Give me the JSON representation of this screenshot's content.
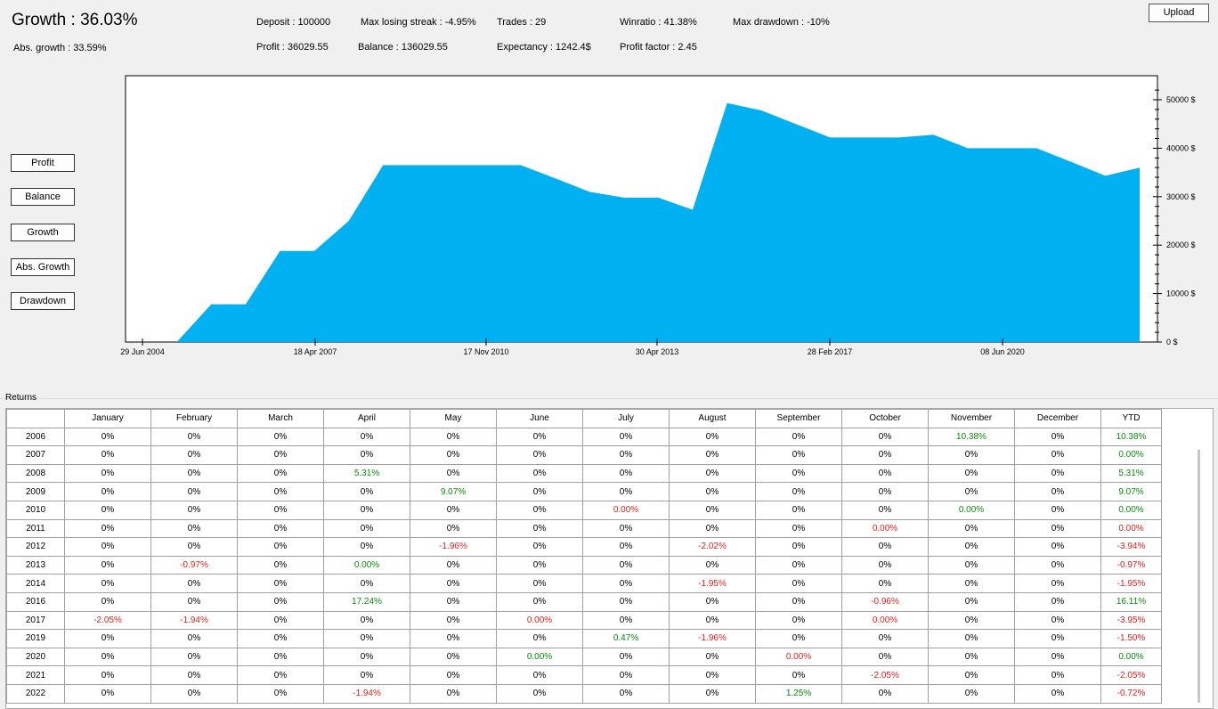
{
  "header": {
    "growth": "Growth : 36.03%",
    "abs_growth": "Abs. growth : 33.59%",
    "deposit": "Deposit : 100000",
    "profit": "Profit : 36029.55",
    "max_losing_streak": "Max losing streak : -4.95%",
    "balance": "Balance : 136029.55",
    "trades": "Trades : 29",
    "expectancy": "Expectancy : 1242.4$",
    "winratio": "Winratio : 41.38%",
    "profit_factor": "Profit factor : 2.45",
    "max_drawdown": "Max drawdown : -10%",
    "upload_label": "Upload"
  },
  "side_buttons": [
    "Profit",
    "Balance",
    "Growth",
    "Abs. Growth",
    "Drawdown"
  ],
  "colors": {
    "area": "#00b0f0",
    "positive": "#0a8a0a",
    "negative": "#e02020"
  },
  "chart_data": {
    "type": "area",
    "x_tick_labels": [
      "29 Jun 2004",
      "18 Apr 2007",
      "17 Nov 2010",
      "30 Apr 2013",
      "28 Feb 2017",
      "08 Jun 2020"
    ],
    "y_tick_labels": [
      "0 $",
      "10000 $",
      "20000 $",
      "30000 $",
      "40000 $",
      "50000 $"
    ],
    "ylim": [
      0,
      50000
    ],
    "values": [
      0,
      0,
      7800,
      7800,
      18800,
      18800,
      25000,
      36500,
      36500,
      36500,
      36500,
      36500,
      33800,
      31000,
      29800,
      29800,
      27300,
      49300,
      47800,
      45000,
      42200,
      42200,
      42200,
      42800,
      40000,
      40000,
      40000,
      37200,
      34300,
      36000
    ],
    "grid": false
  },
  "returns": {
    "label": "Returns",
    "headers": [
      "",
      "January",
      "February",
      "March",
      "April",
      "May",
      "June",
      "July",
      "August",
      "September",
      "October",
      "November",
      "December",
      "YTD"
    ],
    "rows": [
      [
        "2006",
        "0%",
        "0%",
        "0%",
        "0%",
        "0%",
        "0%",
        "0%",
        "0%",
        "0%",
        "0%",
        "10.38%",
        "0%",
        "10.38%"
      ],
      [
        "2007",
        "0%",
        "0%",
        "0%",
        "0%",
        "0%",
        "0%",
        "0%",
        "0%",
        "0%",
        "0%",
        "0%",
        "0%",
        "0.00%"
      ],
      [
        "2008",
        "0%",
        "0%",
        "0%",
        "5.31%",
        "0%",
        "0%",
        "0%",
        "0%",
        "0%",
        "0%",
        "0%",
        "0%",
        "5.31%"
      ],
      [
        "2009",
        "0%",
        "0%",
        "0%",
        "0%",
        "9.07%",
        "0%",
        "0%",
        "0%",
        "0%",
        "0%",
        "0%",
        "0%",
        "9.07%"
      ],
      [
        "2010",
        "0%",
        "0%",
        "0%",
        "0%",
        "0%",
        "0%",
        "0.00%",
        "0%",
        "0%",
        "0%",
        "0.00%",
        "0%",
        "0.00%"
      ],
      [
        "2011",
        "0%",
        "0%",
        "0%",
        "0%",
        "0%",
        "0%",
        "0%",
        "0%",
        "0%",
        "0.00%",
        "0%",
        "0%",
        "0.00%"
      ],
      [
        "2012",
        "0%",
        "0%",
        "0%",
        "0%",
        "-1.96%",
        "0%",
        "0%",
        "-2.02%",
        "0%",
        "0%",
        "0%",
        "0%",
        "-3.94%"
      ],
      [
        "2013",
        "0%",
        "-0.97%",
        "0%",
        "0.00%",
        "0%",
        "0%",
        "0%",
        "0%",
        "0%",
        "0%",
        "0%",
        "0%",
        "-0.97%"
      ],
      [
        "2014",
        "0%",
        "0%",
        "0%",
        "0%",
        "0%",
        "0%",
        "0%",
        "-1.95%",
        "0%",
        "0%",
        "0%",
        "0%",
        "-1.95%"
      ],
      [
        "2016",
        "0%",
        "0%",
        "0%",
        "17.24%",
        "0%",
        "0%",
        "0%",
        "0%",
        "0%",
        "-0.96%",
        "0%",
        "0%",
        "16.11%"
      ],
      [
        "2017",
        "-2.05%",
        "-1.94%",
        "0%",
        "0%",
        "0%",
        "0.00%",
        "0%",
        "0%",
        "0%",
        "0.00%",
        "0%",
        "0%",
        "-3.95%"
      ],
      [
        "2019",
        "0%",
        "0%",
        "0%",
        "0%",
        "0%",
        "0%",
        "0.47%",
        "-1.96%",
        "0%",
        "0%",
        "0%",
        "0%",
        "-1.50%"
      ],
      [
        "2020",
        "0%",
        "0%",
        "0%",
        "0%",
        "0%",
        "0.00%",
        "0%",
        "0%",
        "0.00%",
        "0%",
        "0%",
        "0%",
        "0.00%"
      ],
      [
        "2021",
        "0%",
        "0%",
        "0%",
        "0%",
        "0%",
        "0%",
        "0%",
        "0%",
        "0%",
        "-2.05%",
        "0%",
        "0%",
        "-2.05%"
      ],
      [
        "2022",
        "0%",
        "0%",
        "0%",
        "-1.94%",
        "0%",
        "0%",
        "0%",
        "0%",
        "1.25%",
        "0%",
        "0%",
        "0%",
        "-0.72%"
      ]
    ],
    "colors": [
      [
        "",
        "",
        "",
        "",
        "",
        "",
        "",
        "",
        "",
        "",
        "g",
        "",
        "g"
      ],
      [
        "",
        "",
        "",
        "",
        "",
        "",
        "",
        "",
        "",
        "",
        "",
        "",
        "g"
      ],
      [
        "",
        "",
        "",
        "g",
        "",
        "",
        "",
        "",
        "",
        "",
        "",
        "",
        "g"
      ],
      [
        "",
        "",
        "",
        "",
        "g",
        "",
        "",
        "",
        "",
        "",
        "",
        "",
        "g"
      ],
      [
        "",
        "",
        "",
        "",
        "",
        "",
        "r",
        "",
        "",
        "",
        "g",
        "",
        "g"
      ],
      [
        "",
        "",
        "",
        "",
        "",
        "",
        "",
        "",
        "",
        "r",
        "",
        "",
        "r"
      ],
      [
        "",
        "",
        "",
        "",
        "r",
        "",
        "",
        "r",
        "",
        "",
        "",
        "",
        "r"
      ],
      [
        "",
        "r",
        "",
        "g",
        "",
        "",
        "",
        "",
        "",
        "",
        "",
        "",
        "r"
      ],
      [
        "",
        "",
        "",
        "",
        "",
        "",
        "",
        "r",
        "",
        "",
        "",
        "",
        "r"
      ],
      [
        "",
        "",
        "",
        "g",
        "",
        "",
        "",
        "",
        "",
        "r",
        "",
        "",
        "g"
      ],
      [
        "r",
        "r",
        "",
        "",
        "",
        "r",
        "",
        "",
        "",
        "r",
        "",
        "",
        "r"
      ],
      [
        "",
        "",
        "",
        "",
        "",
        "",
        "g",
        "r",
        "",
        "",
        "",
        "",
        "r"
      ],
      [
        "",
        "",
        "",
        "",
        "",
        "g",
        "",
        "",
        "r",
        "",
        "",
        "",
        "g"
      ],
      [
        "",
        "",
        "",
        "",
        "",
        "",
        "",
        "",
        "",
        "r",
        "",
        "",
        "r"
      ],
      [
        "",
        "",
        "",
        "r",
        "",
        "",
        "",
        "",
        "g",
        "",
        "",
        "",
        "r"
      ]
    ]
  }
}
